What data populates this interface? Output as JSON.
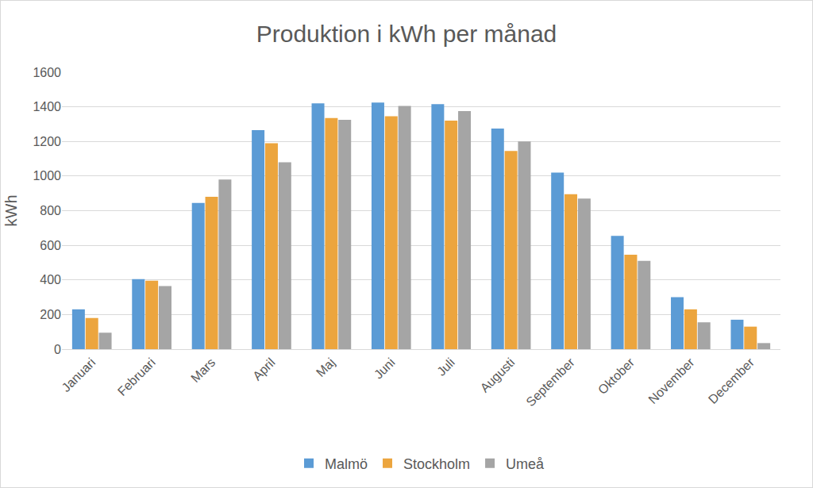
{
  "chart_data": {
    "type": "bar",
    "title": "Produktion i kWh per månad",
    "y_label": "kWh",
    "categories": [
      "Januari",
      "Februari",
      "Mars",
      "April",
      "Maj",
      "Juni",
      "Juli",
      "Augusti",
      "September",
      "Oktober",
      "November",
      "December"
    ],
    "series": [
      {
        "name": "Malmö",
        "color": "#5b9bd5",
        "values": [
          230,
          405,
          845,
          1265,
          1420,
          1425,
          1415,
          1275,
          1020,
          655,
          300,
          170
        ]
      },
      {
        "name": "Stockholm",
        "color": "#eca53e",
        "values": [
          180,
          395,
          880,
          1190,
          1335,
          1345,
          1320,
          1145,
          895,
          545,
          230,
          130
        ]
      },
      {
        "name": "Umeå",
        "color": "#a5a5a5",
        "values": [
          95,
          365,
          980,
          1080,
          1325,
          1405,
          1375,
          1200,
          870,
          510,
          155,
          35
        ]
      }
    ],
    "ylim": [
      0,
      1600
    ],
    "yticks": [
      0,
      200,
      400,
      600,
      800,
      1000,
      1200,
      1400,
      1600
    ],
    "grid": true,
    "legend": "bottom"
  }
}
